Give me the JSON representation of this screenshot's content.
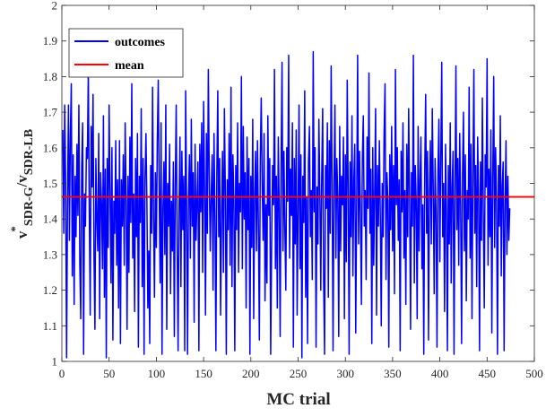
{
  "chart_data": {
    "type": "line",
    "title": "",
    "xlabel": "MC trial",
    "ylabel": {
      "parts": [
        "v",
        "*",
        "SDR-G",
        "/v",
        "SDR-LB"
      ]
    },
    "xlim": [
      0,
      500
    ],
    "ylim": [
      1,
      2
    ],
    "x_ticks": [
      "0",
      "50",
      "100",
      "150",
      "200",
      "250",
      "300",
      "350",
      "400",
      "450",
      "500"
    ],
    "y_ticks": [
      "1",
      "1.1",
      "1.2",
      "1.3",
      "1.4",
      "1.5",
      "1.6",
      "1.7",
      "1.8",
      "1.9",
      "2"
    ],
    "grid": false,
    "legend": {
      "placement": "top-left",
      "entries": [
        "outcomes",
        "mean"
      ]
    },
    "series": [
      {
        "name": "outcomes",
        "color": "#0000ff",
        "x_start": 1,
        "values": [
          1.65,
          1.36,
          1.72,
          1.5,
          1.01,
          1.45,
          1.72,
          1.34,
          1.64,
          1.78,
          1.24,
          1.58,
          1.16,
          1.52,
          1.35,
          1.61,
          1.41,
          1.72,
          1.27,
          1.12,
          1.55,
          1.67,
          1.02,
          1.47,
          1.38,
          1.6,
          1.57,
          1.82,
          1.43,
          1.13,
          1.66,
          1.49,
          1.75,
          1.29,
          1.09,
          1.57,
          1.4,
          1.31,
          1.64,
          1.12,
          1.53,
          1.44,
          1.26,
          1.69,
          1.18,
          1.54,
          1.01,
          1.57,
          1.32,
          1.72,
          1.48,
          1.22,
          1.6,
          1.06,
          1.45,
          1.36,
          1.62,
          1.27,
          1.51,
          1.15,
          1.62,
          1.05,
          1.51,
          1.38,
          1.58,
          1.27,
          1.67,
          1.46,
          1.09,
          1.52,
          1.25,
          1.63,
          1.39,
          1.78,
          1.29,
          1.47,
          1.14,
          1.57,
          1.35,
          1.64,
          1.04,
          1.52,
          1.39,
          1.71,
          1.21,
          1.57,
          1.02,
          1.51,
          1.64,
          1.45,
          1.15,
          1.31,
          1.05,
          1.55,
          1.36,
          1.77,
          1.41,
          1.18,
          1.53,
          1.32,
          1.62,
          1.79,
          1.48,
          1.22,
          1.67,
          1.02,
          1.43,
          1.56,
          1.3,
          1.72,
          1.09,
          1.5,
          1.38,
          1.61,
          1.19,
          1.45,
          1.31,
          1.56,
          1.07,
          1.49,
          1.72,
          1.33,
          1.03,
          1.43,
          1.63,
          1.21,
          1.59,
          1.37,
          1.52,
          1.03,
          1.76,
          1.44,
          1.02,
          1.46,
          1.58,
          1.29,
          1.68,
          1.38,
          1.53,
          1.11,
          1.61,
          1.34,
          1.45,
          1.56,
          1.03,
          1.61,
          1.42,
          1.67,
          1.25,
          1.73,
          1.49,
          1.13,
          1.64,
          1.36,
          1.82,
          1.53,
          1.31,
          1.46,
          1.58,
          1.2,
          1.64,
          1.41,
          1.03,
          1.53,
          1.76,
          1.35,
          1.57,
          1.13,
          1.41,
          1.59,
          1.25,
          1.71,
          1.48,
          1.02,
          1.51,
          1.37,
          1.64,
          1.27,
          1.77,
          1.21,
          1.58,
          1.46,
          1.03,
          1.55,
          1.37,
          1.67,
          1.25,
          1.5,
          1.42,
          1.8,
          1.26,
          1.66,
          1.4,
          1.53,
          1.15,
          1.63,
          1.37,
          1.57,
          1.02,
          1.52,
          1.32,
          1.68,
          1.12,
          1.47,
          1.59,
          1.31,
          1.62,
          1.38,
          1.06,
          1.57,
          1.74,
          1.5,
          1.34,
          1.64,
          1.17,
          1.44,
          1.22,
          1.69,
          1.41,
          1.57,
          1.02,
          1.33,
          1.55,
          1.44,
          1.82,
          1.26,
          1.52,
          1.15,
          1.63,
          1.43,
          1.07,
          1.55,
          1.84,
          1.31,
          1.59,
          1.37,
          1.2,
          1.6,
          1.45,
          1.86,
          1.29,
          1.54,
          1.41,
          1.67,
          1.04,
          1.57,
          1.33,
          1.65,
          1.13,
          1.43,
          1.72,
          1.26,
          1.58,
          1.01,
          1.52,
          1.39,
          1.76,
          1.18,
          1.46,
          1.05,
          1.56,
          1.66,
          1.35,
          1.48,
          1.23,
          1.87,
          1.42,
          1.6,
          1.04,
          1.49,
          1.33,
          1.68,
          1.48,
          1.2,
          1.52,
          1.71,
          1.23,
          1.02,
          1.55,
          1.43,
          1.67,
          1.18,
          1.62,
          1.36,
          1.83,
          1.49,
          1.03,
          1.51,
          1.72,
          1.29,
          1.57,
          1.46,
          1.07,
          1.66,
          1.31,
          1.52,
          1.44,
          1.63,
          1.12,
          1.58,
          1.28,
          1.79,
          1.48,
          1.02,
          1.56,
          1.35,
          1.69,
          1.24,
          1.51,
          1.61,
          1.08,
          1.45,
          1.86,
          1.33,
          1.59,
          1.41,
          1.16,
          1.57,
          1.69,
          1.38,
          1.48,
          1.23,
          1.63,
          1.43,
          1.81,
          1.36,
          1.54,
          1.05,
          1.6,
          1.27,
          1.47,
          1.71,
          1.13,
          1.55,
          1.38,
          1.62,
          1.41,
          1.1,
          1.5,
          1.35,
          1.64,
          1.78,
          1.23,
          1.53,
          1.45,
          1.04,
          1.58,
          1.37,
          1.66,
          1.31,
          1.55,
          1.19,
          1.82,
          1.44,
          1.6,
          1.34,
          1.51,
          1.03,
          1.59,
          1.42,
          1.67,
          1.29,
          1.48,
          1.16,
          1.61,
          1.35,
          1.71,
          1.46,
          1.09,
          1.53,
          1.38,
          1.86,
          1.22,
          1.55,
          1.45,
          1.12,
          1.66,
          1.31,
          1.51,
          1.63,
          1.26,
          1.44,
          1.02,
          1.54,
          1.75,
          1.36,
          1.59,
          1.06,
          1.47,
          1.62,
          1.33,
          1.71,
          1.49,
          1.19,
          1.57,
          1.41,
          1.04,
          1.53,
          1.68,
          1.28,
          1.56,
          1.84,
          1.35,
          1.5,
          1.14,
          1.61,
          1.42,
          1.03,
          1.55,
          1.33,
          1.67,
          1.22,
          1.49,
          1.59,
          1.02,
          1.46,
          1.83,
          1.37,
          1.57,
          1.27,
          1.64,
          1.44,
          1.05,
          1.53,
          1.7,
          1.31,
          1.58,
          1.17,
          1.48,
          1.4,
          1.77,
          1.29,
          1.61,
          1.12,
          1.52,
          1.82,
          1.36,
          1.55,
          1.21,
          1.63,
          1.47,
          1.03,
          1.56,
          1.34,
          1.74,
          1.42,
          1.15,
          1.58,
          1.49,
          1.85,
          1.27,
          1.54,
          1.35,
          1.65,
          1.08,
          1.51,
          1.8,
          1.32,
          1.6,
          1.45,
          1.02,
          1.55,
          1.38,
          1.69,
          1.24,
          1.49,
          1.56,
          1.03,
          1.44,
          1.62,
          1.3,
          1.52,
          1.34,
          1.43
        ]
      },
      {
        "name": "mean",
        "color": "#ff0000",
        "value": 1.462
      }
    ]
  }
}
